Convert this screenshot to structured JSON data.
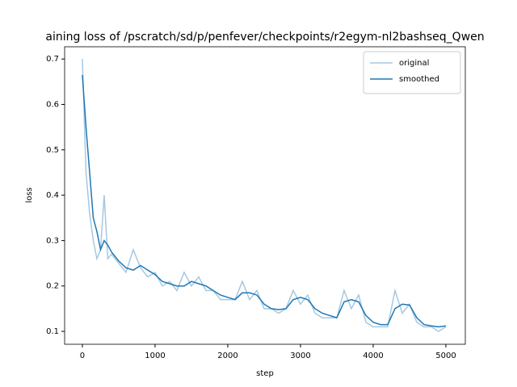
{
  "chart_data": {
    "type": "line",
    "title": "aining loss of /pscratch/sd/p/penfever/checkpoints/r2egym-nl2bashseq_Qwen",
    "x_label": "step",
    "y_label": "loss",
    "x": [
      0,
      50,
      100,
      150,
      200,
      250,
      300,
      350,
      400,
      500,
      600,
      700,
      800,
      900,
      1000,
      1100,
      1200,
      1300,
      1400,
      1500,
      1600,
      1700,
      1800,
      1900,
      2000,
      2100,
      2200,
      2300,
      2400,
      2500,
      2600,
      2700,
      2800,
      2900,
      3000,
      3100,
      3200,
      3300,
      3400,
      3500,
      3600,
      3700,
      3800,
      3900,
      4000,
      4100,
      4200,
      4300,
      4400,
      4500,
      4600,
      4700,
      4800,
      4900,
      5000
    ],
    "series": [
      {
        "name": "original",
        "color": "#a5c8e1",
        "values": [
          0.7,
          0.45,
          0.36,
          0.3,
          0.26,
          0.28,
          0.4,
          0.26,
          0.27,
          0.25,
          0.23,
          0.28,
          0.24,
          0.22,
          0.23,
          0.2,
          0.21,
          0.19,
          0.23,
          0.2,
          0.22,
          0.19,
          0.19,
          0.17,
          0.17,
          0.17,
          0.21,
          0.17,
          0.19,
          0.15,
          0.15,
          0.14,
          0.15,
          0.19,
          0.16,
          0.18,
          0.14,
          0.13,
          0.13,
          0.13,
          0.19,
          0.15,
          0.18,
          0.12,
          0.11,
          0.11,
          0.11,
          0.19,
          0.14,
          0.16,
          0.12,
          0.11,
          0.11,
          0.1,
          0.11
        ]
      },
      {
        "name": "smoothed",
        "color": "#1f77b4",
        "values": [
          0.665,
          0.55,
          0.45,
          0.35,
          0.32,
          0.28,
          0.3,
          0.29,
          0.275,
          0.255,
          0.24,
          0.235,
          0.245,
          0.235,
          0.225,
          0.21,
          0.205,
          0.2,
          0.2,
          0.21,
          0.205,
          0.2,
          0.19,
          0.18,
          0.175,
          0.17,
          0.185,
          0.185,
          0.18,
          0.16,
          0.15,
          0.148,
          0.15,
          0.17,
          0.175,
          0.17,
          0.15,
          0.14,
          0.135,
          0.13,
          0.165,
          0.17,
          0.165,
          0.135,
          0.12,
          0.115,
          0.115,
          0.15,
          0.16,
          0.158,
          0.13,
          0.115,
          0.112,
          0.11,
          0.112
        ]
      }
    ],
    "xlim": [
      -244,
      5267
    ],
    "ylim": [
      0.0716,
      0.727
    ],
    "xticks": [
      0,
      1000,
      2000,
      3000,
      4000,
      5000
    ],
    "yticks": [
      0.1,
      0.2,
      0.3,
      0.4,
      0.5,
      0.6,
      0.7
    ],
    "grid": false,
    "legend": "upper right"
  }
}
